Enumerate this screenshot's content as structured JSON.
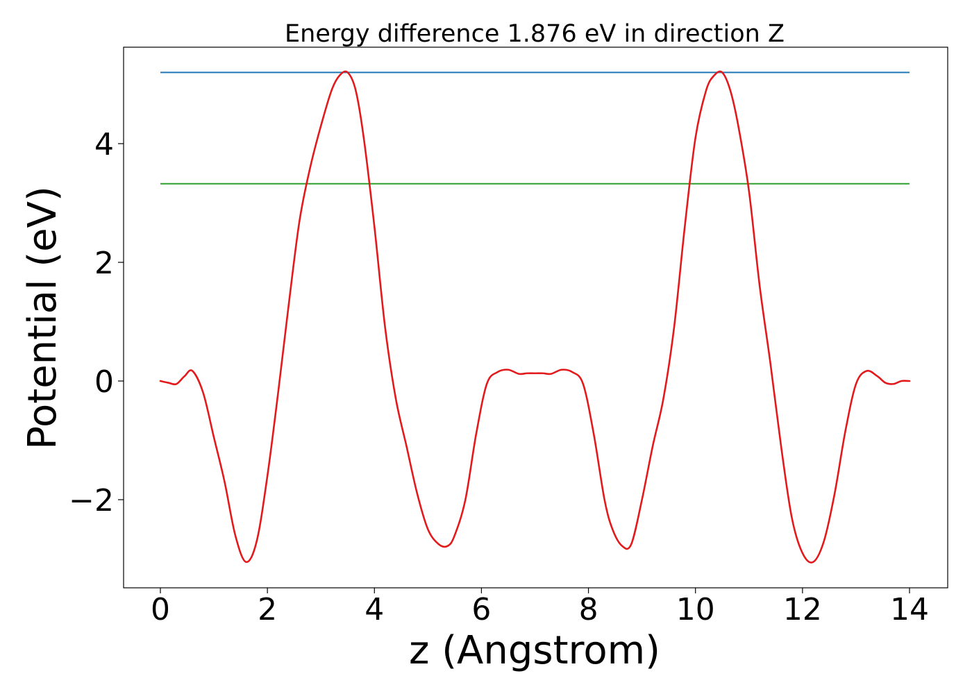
{
  "chart_data": {
    "type": "line",
    "title": "Energy difference 1.876 eV in direction Z",
    "xlabel": "z (Angstrom)",
    "ylabel": "Potential (eV)",
    "xlim": [
      -0.7,
      14.0
    ],
    "ylim": [
      -3.45,
      5.6
    ],
    "grid": false,
    "x_ticks": [
      0,
      2,
      4,
      6,
      8,
      10,
      12,
      14
    ],
    "y_ticks": [
      -2,
      0,
      2,
      4
    ],
    "x_tick_labels": [
      "0",
      "2",
      "4",
      "6",
      "8",
      "10",
      "12",
      "14"
    ],
    "y_tick_labels": [
      "−2",
      "0",
      "2",
      "4"
    ],
    "hlines": [
      {
        "y": 5.2,
        "xmin": 0,
        "xmax": 14,
        "color": "#1f77b4"
      },
      {
        "y": 3.324,
        "xmin": 0,
        "xmax": 14,
        "color": "#2ca02c"
      }
    ],
    "series": [
      {
        "color": "#e31a1c",
        "x": [
          0,
          0.15,
          0.3,
          0.45,
          0.6,
          0.8,
          1.0,
          1.2,
          1.4,
          1.6,
          1.8,
          2.0,
          2.2,
          2.4,
          2.6,
          2.8,
          3.0,
          3.2,
          3.35,
          3.5,
          3.65,
          3.8,
          4.0,
          4.2,
          4.4,
          4.6,
          4.8,
          5.0,
          5.2,
          5.37,
          5.5,
          5.7,
          5.9,
          6.1,
          6.3,
          6.5,
          6.7,
          6.85,
          7.0,
          7.15,
          7.3,
          7.5,
          7.7,
          7.9,
          8.1,
          8.3,
          8.45,
          8.63,
          8.8,
          9.0,
          9.2,
          9.4,
          9.6,
          9.8,
          10.0,
          10.2,
          10.35,
          10.5,
          10.65,
          10.8,
          11.0,
          11.2,
          11.4,
          11.6,
          11.8,
          12.0,
          12.2,
          12.4,
          12.6,
          12.8,
          13.0,
          13.2,
          13.4,
          13.55,
          13.7,
          13.85,
          14.0
        ],
        "y": [
          0.0,
          -0.03,
          -0.05,
          0.08,
          0.17,
          -0.2,
          -0.95,
          -1.7,
          -2.6,
          -3.05,
          -2.7,
          -1.6,
          -0.2,
          1.3,
          2.7,
          3.6,
          4.3,
          4.9,
          5.15,
          5.2,
          4.9,
          4.1,
          2.6,
          0.9,
          -0.3,
          -1.1,
          -1.9,
          -2.5,
          -2.75,
          -2.78,
          -2.6,
          -2.0,
          -0.9,
          -0.05,
          0.15,
          0.19,
          0.12,
          0.13,
          0.13,
          0.13,
          0.12,
          0.19,
          0.15,
          -0.05,
          -0.9,
          -2.0,
          -2.5,
          -2.78,
          -2.75,
          -2.0,
          -1.1,
          -0.3,
          0.9,
          2.6,
          4.1,
          4.9,
          5.15,
          5.2,
          4.9,
          4.3,
          3.2,
          1.6,
          0.3,
          -1.1,
          -2.3,
          -2.9,
          -3.05,
          -2.7,
          -1.9,
          -0.85,
          -0.05,
          0.17,
          0.08,
          -0.03,
          -0.05,
          0.0,
          0.0
        ]
      }
    ]
  }
}
